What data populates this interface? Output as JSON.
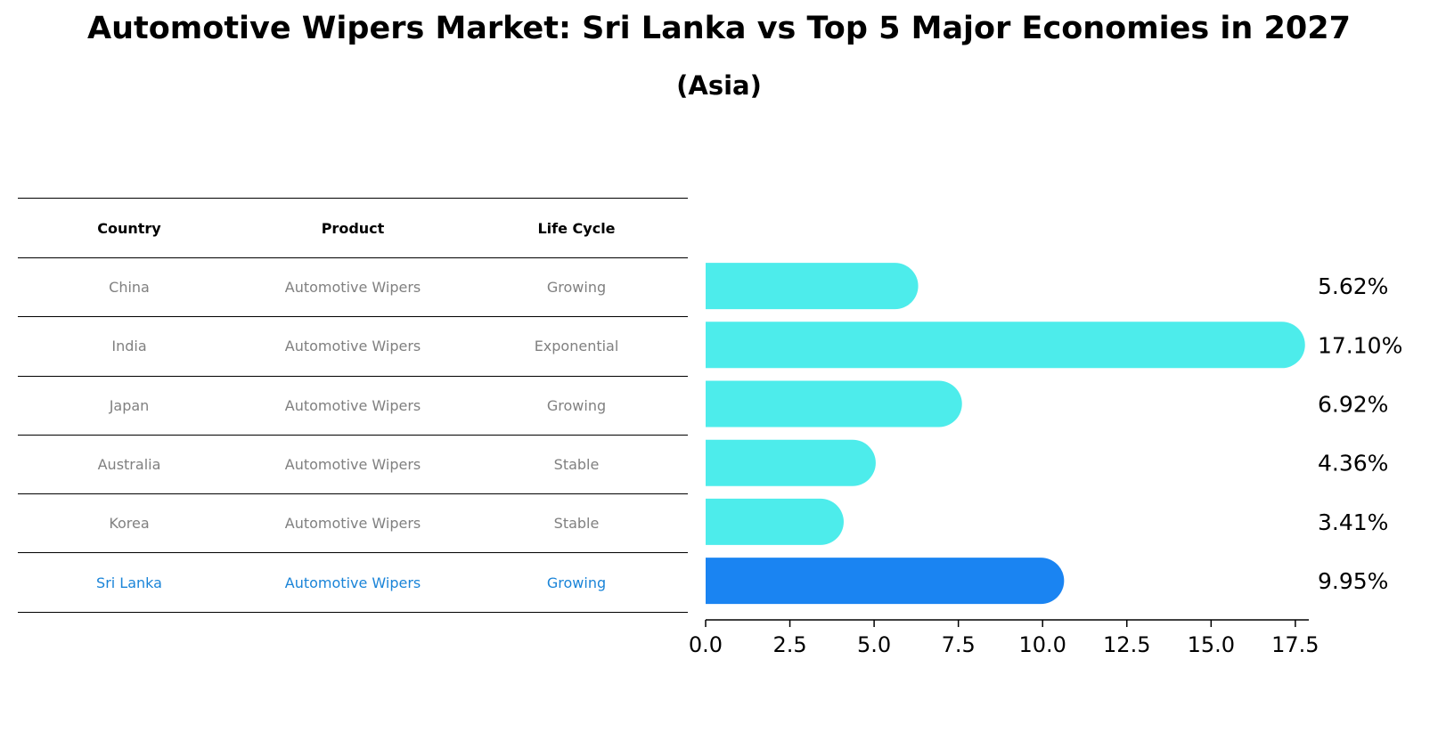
{
  "title": "Automotive Wipers Market: Sri Lanka vs Top 5 Major Economies in 2027",
  "subtitle": "(Asia)",
  "table": {
    "headers": [
      "Country",
      "Product",
      "Life Cycle"
    ],
    "rows": [
      {
        "country": "China",
        "product": "Automotive Wipers",
        "life_cycle": "Growing"
      },
      {
        "country": "India",
        "product": "Automotive Wipers",
        "life_cycle": "Exponential"
      },
      {
        "country": "Japan",
        "product": "Automotive Wipers",
        "life_cycle": "Growing"
      },
      {
        "country": "Australia",
        "product": "Automotive Wipers",
        "life_cycle": "Stable"
      },
      {
        "country": "Korea",
        "product": "Automotive Wipers",
        "life_cycle": "Stable"
      },
      {
        "country": "Sri Lanka",
        "product": "Automotive Wipers",
        "life_cycle": "Growing"
      }
    ]
  },
  "colors": {
    "bar": "#4deceb",
    "highlight_bar": "#1a84f2",
    "highlight_text": "#1a84d8",
    "row_text": "#808080"
  },
  "chart_data": {
    "type": "bar",
    "orientation": "horizontal",
    "title": "Automotive Wipers Market: Sri Lanka vs Top 5 Major Economies in 2027",
    "subtitle": "(Asia)",
    "categories": [
      "China",
      "India",
      "Japan",
      "Australia",
      "Korea",
      "Sri Lanka"
    ],
    "values": [
      5.62,
      17.1,
      6.92,
      4.36,
      3.41,
      9.95
    ],
    "labels": [
      "5.62%",
      "17.10%",
      "6.92%",
      "4.36%",
      "3.41%",
      "9.95%"
    ],
    "highlight": "Sri Lanka",
    "xlim": [
      0,
      17.9
    ],
    "xticks": [
      0.0,
      2.5,
      5.0,
      7.5,
      10.0,
      12.5,
      15.0,
      17.5
    ],
    "xtick_labels": [
      "0.0",
      "2.5",
      "5.0",
      "7.5",
      "10.0",
      "12.5",
      "15.0",
      "17.5"
    ],
    "xlabel": "",
    "ylabel": "",
    "grid": false
  }
}
